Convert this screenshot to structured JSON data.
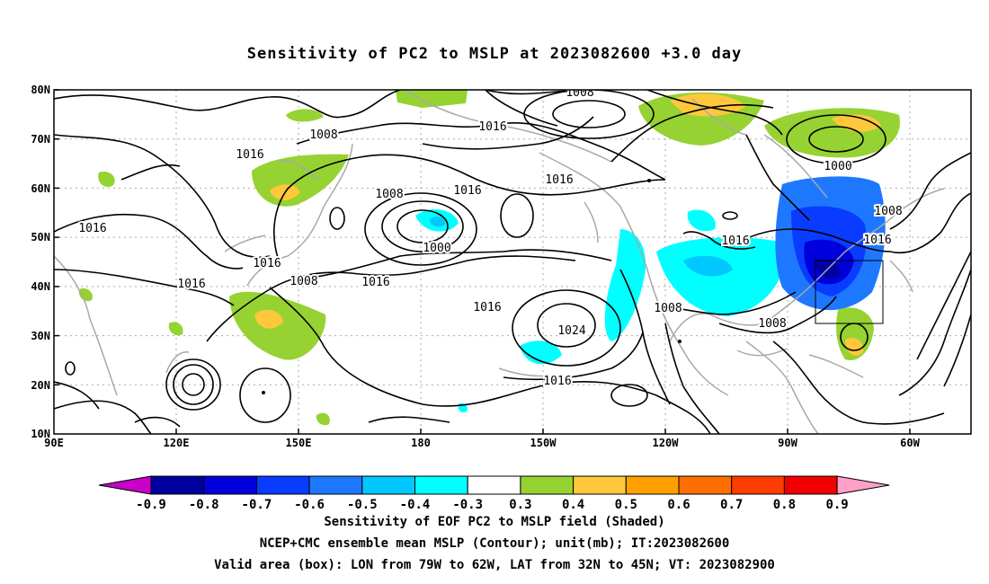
{
  "title": "Sensitivity of PC2 to MSLP at 2023082600 +3.0 day",
  "lat_labels": [
    "80N",
    "70N",
    "60N",
    "50N",
    "40N",
    "30N",
    "20N",
    "10N"
  ],
  "lon_labels": [
    "90E",
    "120E",
    "150E",
    "180",
    "150W",
    "120W",
    "90W",
    "60W"
  ],
  "isobar_labels": [
    "1008",
    "1008",
    "1016",
    "1016",
    "1016",
    "1016",
    "1008",
    "1016",
    "1000",
    "1016",
    "1008",
    "1016",
    "1016",
    "1024",
    "1008",
    "1016",
    "1000",
    "1008",
    "1016",
    "1016",
    "1008",
    "1016"
  ],
  "colorbar": {
    "labels": [
      "-0.9",
      "-0.8",
      "-0.7",
      "-0.6",
      "-0.5",
      "-0.4",
      "-0.3",
      "0.3",
      "0.4",
      "0.5",
      "0.6",
      "0.7",
      "0.8",
      "0.9"
    ],
    "colors": [
      "#c800c8",
      "#0000a0",
      "#0000dc",
      "#0a3cff",
      "#1e78ff",
      "#00c8ff",
      "#00ffff",
      "#ffffff",
      "#96d232",
      "#ffc83c",
      "#ffa000",
      "#ff6e00",
      "#ff3c00",
      "#f00000",
      "#ffa0c8"
    ]
  },
  "captions": {
    "line1": "Sensitivity of EOF PC2 to MSLP field (Shaded)",
    "line2": "NCEP+CMC ensemble mean MSLP (Contour); unit(mb); IT:2023082600",
    "line3": "Valid area (box): LON from 79W to 62W, LAT from 32N to 45N; VT: 2023082900"
  }
}
